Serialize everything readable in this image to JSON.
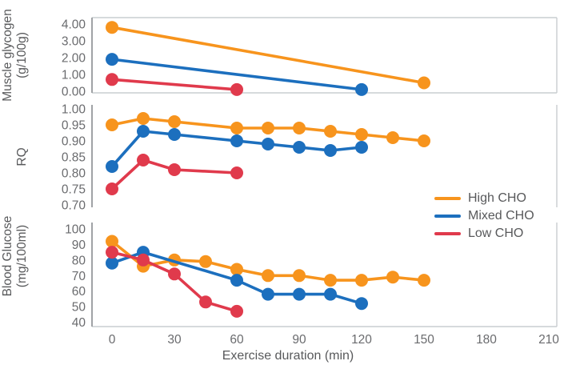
{
  "figure": {
    "x_axis": {
      "title": "Exercise duration (min)",
      "ticks": [
        0,
        30,
        60,
        90,
        120,
        150,
        180,
        210
      ],
      "range": [
        0,
        210
      ]
    },
    "legend": [
      {
        "label": "High CHO",
        "color": "#F7941D"
      },
      {
        "label": "Mixed CHO",
        "color": "#1C6FBE"
      },
      {
        "label": "Low CHO",
        "color": "#E03A4C"
      }
    ],
    "text_color": "#58595b",
    "tick_color": "#6a6b6e",
    "axis_line_color": "#a0a3a6",
    "border_color": "#c9cdd0"
  },
  "chart_data": [
    {
      "type": "line",
      "title": "Muscle glycogen (g/100g)",
      "ylabel_lines": [
        "Muscle glycogen",
        "(g/100g)"
      ],
      "y_ticks": [
        "4.00",
        "3.00",
        "2.00",
        "1.00",
        "0.00"
      ],
      "ylim": [
        0,
        4.4
      ],
      "grid": false,
      "series": [
        {
          "name": "High CHO",
          "color": "#F7941D",
          "points": [
            [
              0,
              3.8
            ],
            [
              150,
              0.5
            ]
          ]
        },
        {
          "name": "Mixed CHO",
          "color": "#1C6FBE",
          "points": [
            [
              0,
              1.9
            ],
            [
              120,
              0.1
            ]
          ]
        },
        {
          "name": "Low CHO",
          "color": "#E03A4C",
          "points": [
            [
              0,
              0.7
            ],
            [
              60,
              0.1
            ]
          ]
        }
      ]
    },
    {
      "type": "line",
      "title": "RQ",
      "ylabel_lines": [
        "RQ"
      ],
      "y_ticks": [
        "1.00",
        "0.95",
        "0.90",
        "0.85",
        "0.80",
        "0.75",
        "0.70"
      ],
      "ylim": [
        0.7,
        1.0
      ],
      "grid": false,
      "series": [
        {
          "name": "High CHO",
          "color": "#F7941D",
          "points": [
            [
              0,
              0.95
            ],
            [
              15,
              0.97
            ],
            [
              30,
              0.96
            ],
            [
              60,
              0.94
            ],
            [
              75,
              0.94
            ],
            [
              90,
              0.94
            ],
            [
              105,
              0.93
            ],
            [
              120,
              0.92
            ],
            [
              135,
              0.91
            ],
            [
              150,
              0.9
            ]
          ]
        },
        {
          "name": "Mixed CHO",
          "color": "#1C6FBE",
          "points": [
            [
              0,
              0.82
            ],
            [
              15,
              0.93
            ],
            [
              30,
              0.92
            ],
            [
              60,
              0.9
            ],
            [
              75,
              0.89
            ],
            [
              90,
              0.88
            ],
            [
              105,
              0.87
            ],
            [
              120,
              0.88
            ]
          ]
        },
        {
          "name": "Low CHO",
          "color": "#E03A4C",
          "points": [
            [
              0,
              0.75
            ],
            [
              15,
              0.84
            ],
            [
              30,
              0.81
            ],
            [
              60,
              0.8
            ]
          ]
        }
      ]
    },
    {
      "type": "line",
      "title": "Blood Glucose (mg/100ml)",
      "ylabel_lines": [
        "Blood Glucose",
        "(mg/100ml)"
      ],
      "y_ticks": [
        "100",
        "90",
        "80",
        "70",
        "60",
        "50",
        "40"
      ],
      "ylim": [
        40,
        100
      ],
      "grid": false,
      "series": [
        {
          "name": "High CHO",
          "color": "#F7941D",
          "points": [
            [
              0,
              92
            ],
            [
              15,
              76
            ],
            [
              30,
              80
            ],
            [
              45,
              79
            ],
            [
              60,
              74
            ],
            [
              75,
              70
            ],
            [
              90,
              70
            ],
            [
              105,
              67
            ],
            [
              120,
              67
            ],
            [
              135,
              69
            ],
            [
              150,
              67
            ]
          ]
        },
        {
          "name": "Mixed CHO",
          "color": "#1C6FBE",
          "points": [
            [
              0,
              78
            ],
            [
              15,
              85
            ],
            [
              60,
              67
            ],
            [
              75,
              58
            ],
            [
              90,
              58
            ],
            [
              105,
              58
            ],
            [
              120,
              52
            ]
          ]
        },
        {
          "name": "Low CHO",
          "color": "#E03A4C",
          "points": [
            [
              0,
              85
            ],
            [
              15,
              80
            ],
            [
              30,
              71
            ],
            [
              45,
              53
            ],
            [
              60,
              47
            ]
          ]
        }
      ]
    }
  ]
}
